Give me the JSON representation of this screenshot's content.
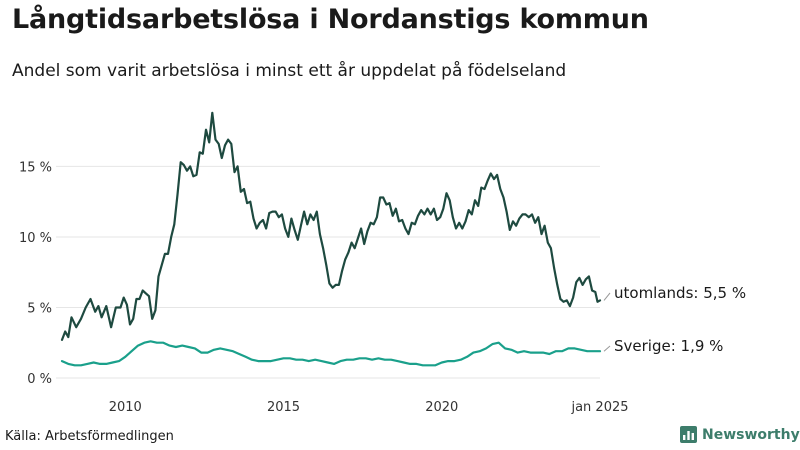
{
  "title": "Långtidsarbetslösa i Nordanstigs kommun",
  "subtitle": "Andel som varit arbetslösa i minst ett år uppdelat på födelseland",
  "source": "Källa: Arbetsförmedlingen",
  "brand": {
    "name": "Newsworthy",
    "icon": "bar-chart-icon",
    "color": "#3d7d6b"
  },
  "colors": {
    "series_foreign": "#1e4a40",
    "series_sweden": "#1aa08b",
    "grid": "#e6e6e6"
  },
  "chart_data": {
    "type": "line",
    "title": "Långtidsarbetslösa i Nordanstigs kommun",
    "subtitle": "Andel som varit arbetslösa i minst ett år uppdelat på födelseland",
    "xlabel": "",
    "ylabel": "",
    "xlim": [
      2008.0,
      2025.0
    ],
    "ylim": [
      0,
      19
    ],
    "grid": true,
    "x_ticks": [
      {
        "value": 2010,
        "label": "2010"
      },
      {
        "value": 2015,
        "label": "2015"
      },
      {
        "value": 2020,
        "label": "2020"
      },
      {
        "value": 2025,
        "label": "jan 2025"
      }
    ],
    "y_ticks": [
      {
        "value": 0,
        "label": "0 %"
      },
      {
        "value": 5,
        "label": "5 %"
      },
      {
        "value": 10,
        "label": "10 %"
      },
      {
        "value": 15,
        "label": "15 %"
      }
    ],
    "series": [
      {
        "name": "utomlands",
        "end_label": "utomlands: 5,5 %",
        "points": [
          [
            2008.0,
            2.7
          ],
          [
            2008.1,
            3.3
          ],
          [
            2008.2,
            2.9
          ],
          [
            2008.3,
            4.3
          ],
          [
            2008.45,
            3.6
          ],
          [
            2008.6,
            4.2
          ],
          [
            2008.75,
            5.0
          ],
          [
            2008.9,
            5.6
          ],
          [
            2009.05,
            4.7
          ],
          [
            2009.15,
            5.1
          ],
          [
            2009.25,
            4.3
          ],
          [
            2009.4,
            5.1
          ],
          [
            2009.55,
            3.6
          ],
          [
            2009.7,
            5.0
          ],
          [
            2009.85,
            5.0
          ],
          [
            2009.95,
            5.7
          ],
          [
            2010.05,
            5.2
          ],
          [
            2010.15,
            3.8
          ],
          [
            2010.25,
            4.2
          ],
          [
            2010.35,
            5.6
          ],
          [
            2010.45,
            5.6
          ],
          [
            2010.55,
            6.2
          ],
          [
            2010.65,
            6.0
          ],
          [
            2010.75,
            5.8
          ],
          [
            2010.85,
            4.2
          ],
          [
            2010.95,
            4.8
          ],
          [
            2011.05,
            7.2
          ],
          [
            2011.15,
            8.0
          ],
          [
            2011.25,
            8.8
          ],
          [
            2011.35,
            8.8
          ],
          [
            2011.45,
            10.0
          ],
          [
            2011.55,
            10.9
          ],
          [
            2011.65,
            13.0
          ],
          [
            2011.75,
            15.3
          ],
          [
            2011.85,
            15.1
          ],
          [
            2011.95,
            14.7
          ],
          [
            2012.05,
            15.0
          ],
          [
            2012.15,
            14.3
          ],
          [
            2012.25,
            14.4
          ],
          [
            2012.35,
            16.0
          ],
          [
            2012.45,
            15.9
          ],
          [
            2012.55,
            17.6
          ],
          [
            2012.65,
            16.7
          ],
          [
            2012.75,
            18.8
          ],
          [
            2012.85,
            16.9
          ],
          [
            2012.95,
            16.6
          ],
          [
            2013.05,
            15.6
          ],
          [
            2013.15,
            16.5
          ],
          [
            2013.25,
            16.9
          ],
          [
            2013.35,
            16.6
          ],
          [
            2013.45,
            14.6
          ],
          [
            2013.55,
            15.0
          ],
          [
            2013.65,
            13.2
          ],
          [
            2013.75,
            13.4
          ],
          [
            2013.85,
            12.4
          ],
          [
            2013.95,
            12.5
          ],
          [
            2014.05,
            11.3
          ],
          [
            2014.15,
            10.6
          ],
          [
            2014.25,
            11.0
          ],
          [
            2014.35,
            11.2
          ],
          [
            2014.45,
            10.6
          ],
          [
            2014.55,
            11.7
          ],
          [
            2014.65,
            11.8
          ],
          [
            2014.75,
            11.8
          ],
          [
            2014.85,
            11.4
          ],
          [
            2014.95,
            11.6
          ],
          [
            2015.05,
            10.6
          ],
          [
            2015.15,
            10.0
          ],
          [
            2015.25,
            11.3
          ],
          [
            2015.35,
            10.5
          ],
          [
            2015.45,
            9.8
          ],
          [
            2015.55,
            10.8
          ],
          [
            2015.65,
            11.8
          ],
          [
            2015.75,
            10.9
          ],
          [
            2015.85,
            11.6
          ],
          [
            2015.95,
            11.2
          ],
          [
            2016.05,
            11.8
          ],
          [
            2016.15,
            10.2
          ],
          [
            2016.25,
            9.2
          ],
          [
            2016.35,
            8.0
          ],
          [
            2016.45,
            6.7
          ],
          [
            2016.55,
            6.4
          ],
          [
            2016.65,
            6.6
          ],
          [
            2016.75,
            6.6
          ],
          [
            2016.85,
            7.6
          ],
          [
            2016.95,
            8.4
          ],
          [
            2017.05,
            8.9
          ],
          [
            2017.15,
            9.6
          ],
          [
            2017.25,
            9.2
          ],
          [
            2017.35,
            9.9
          ],
          [
            2017.45,
            10.6
          ],
          [
            2017.55,
            9.5
          ],
          [
            2017.65,
            10.4
          ],
          [
            2017.75,
            11.0
          ],
          [
            2017.85,
            10.9
          ],
          [
            2017.95,
            11.4
          ],
          [
            2018.05,
            12.8
          ],
          [
            2018.15,
            12.8
          ],
          [
            2018.25,
            12.3
          ],
          [
            2018.35,
            12.4
          ],
          [
            2018.45,
            11.5
          ],
          [
            2018.55,
            12.0
          ],
          [
            2018.65,
            11.1
          ],
          [
            2018.75,
            11.2
          ],
          [
            2018.85,
            10.6
          ],
          [
            2018.95,
            10.2
          ],
          [
            2019.05,
            11.0
          ],
          [
            2019.15,
            10.9
          ],
          [
            2019.25,
            11.5
          ],
          [
            2019.35,
            11.9
          ],
          [
            2019.45,
            11.6
          ],
          [
            2019.55,
            12.0
          ],
          [
            2019.65,
            11.6
          ],
          [
            2019.75,
            12.0
          ],
          [
            2019.85,
            11.2
          ],
          [
            2019.95,
            11.4
          ],
          [
            2020.05,
            12.0
          ],
          [
            2020.15,
            13.1
          ],
          [
            2020.25,
            12.6
          ],
          [
            2020.35,
            11.4
          ],
          [
            2020.45,
            10.6
          ],
          [
            2020.55,
            11.0
          ],
          [
            2020.65,
            10.6
          ],
          [
            2020.75,
            11.1
          ],
          [
            2020.85,
            11.9
          ],
          [
            2020.95,
            11.6
          ],
          [
            2021.05,
            12.6
          ],
          [
            2021.15,
            12.2
          ],
          [
            2021.25,
            13.5
          ],
          [
            2021.35,
            13.4
          ],
          [
            2021.45,
            14.0
          ],
          [
            2021.55,
            14.5
          ],
          [
            2021.65,
            14.1
          ],
          [
            2021.75,
            14.4
          ],
          [
            2021.85,
            13.4
          ],
          [
            2021.95,
            12.8
          ],
          [
            2022.05,
            11.8
          ],
          [
            2022.15,
            10.5
          ],
          [
            2022.25,
            11.1
          ],
          [
            2022.35,
            10.8
          ],
          [
            2022.45,
            11.3
          ],
          [
            2022.55,
            11.6
          ],
          [
            2022.65,
            11.6
          ],
          [
            2022.75,
            11.4
          ],
          [
            2022.85,
            11.6
          ],
          [
            2022.95,
            11.0
          ],
          [
            2023.05,
            11.4
          ],
          [
            2023.15,
            10.2
          ],
          [
            2023.25,
            10.8
          ],
          [
            2023.35,
            9.6
          ],
          [
            2023.45,
            9.2
          ],
          [
            2023.55,
            7.8
          ],
          [
            2023.65,
            6.6
          ],
          [
            2023.75,
            5.6
          ],
          [
            2023.85,
            5.4
          ],
          [
            2023.95,
            5.5
          ],
          [
            2024.05,
            5.1
          ],
          [
            2024.15,
            5.7
          ],
          [
            2024.25,
            6.8
          ],
          [
            2024.35,
            7.1
          ],
          [
            2024.45,
            6.6
          ],
          [
            2024.55,
            7.0
          ],
          [
            2024.65,
            7.2
          ],
          [
            2024.75,
            6.2
          ],
          [
            2024.85,
            6.1
          ],
          [
            2024.92,
            5.4
          ],
          [
            2025.0,
            5.5
          ]
        ]
      },
      {
        "name": "Sverige",
        "end_label": "Sverige: 1,9 %",
        "points": [
          [
            2008.0,
            1.2
          ],
          [
            2008.2,
            1.0
          ],
          [
            2008.4,
            0.9
          ],
          [
            2008.6,
            0.9
          ],
          [
            2008.8,
            1.0
          ],
          [
            2009.0,
            1.1
          ],
          [
            2009.2,
            1.0
          ],
          [
            2009.4,
            1.0
          ],
          [
            2009.6,
            1.1
          ],
          [
            2009.8,
            1.2
          ],
          [
            2010.0,
            1.5
          ],
          [
            2010.2,
            1.9
          ],
          [
            2010.4,
            2.3
          ],
          [
            2010.6,
            2.5
          ],
          [
            2010.8,
            2.6
          ],
          [
            2011.0,
            2.5
          ],
          [
            2011.2,
            2.5
          ],
          [
            2011.4,
            2.3
          ],
          [
            2011.6,
            2.2
          ],
          [
            2011.8,
            2.3
          ],
          [
            2012.0,
            2.2
          ],
          [
            2012.2,
            2.1
          ],
          [
            2012.4,
            1.8
          ],
          [
            2012.6,
            1.8
          ],
          [
            2012.8,
            2.0
          ],
          [
            2013.0,
            2.1
          ],
          [
            2013.2,
            2.0
          ],
          [
            2013.4,
            1.9
          ],
          [
            2013.6,
            1.7
          ],
          [
            2013.8,
            1.5
          ],
          [
            2014.0,
            1.3
          ],
          [
            2014.2,
            1.2
          ],
          [
            2014.4,
            1.2
          ],
          [
            2014.6,
            1.2
          ],
          [
            2014.8,
            1.3
          ],
          [
            2015.0,
            1.4
          ],
          [
            2015.2,
            1.4
          ],
          [
            2015.4,
            1.3
          ],
          [
            2015.6,
            1.3
          ],
          [
            2015.8,
            1.2
          ],
          [
            2016.0,
            1.3
          ],
          [
            2016.2,
            1.2
          ],
          [
            2016.4,
            1.1
          ],
          [
            2016.6,
            1.0
          ],
          [
            2016.8,
            1.2
          ],
          [
            2017.0,
            1.3
          ],
          [
            2017.2,
            1.3
          ],
          [
            2017.4,
            1.4
          ],
          [
            2017.6,
            1.4
          ],
          [
            2017.8,
            1.3
          ],
          [
            2018.0,
            1.4
          ],
          [
            2018.2,
            1.3
          ],
          [
            2018.4,
            1.3
          ],
          [
            2018.6,
            1.2
          ],
          [
            2018.8,
            1.1
          ],
          [
            2019.0,
            1.0
          ],
          [
            2019.2,
            1.0
          ],
          [
            2019.4,
            0.9
          ],
          [
            2019.6,
            0.9
          ],
          [
            2019.8,
            0.9
          ],
          [
            2020.0,
            1.1
          ],
          [
            2020.2,
            1.2
          ],
          [
            2020.4,
            1.2
          ],
          [
            2020.6,
            1.3
          ],
          [
            2020.8,
            1.5
          ],
          [
            2021.0,
            1.8
          ],
          [
            2021.2,
            1.9
          ],
          [
            2021.4,
            2.1
          ],
          [
            2021.6,
            2.4
          ],
          [
            2021.8,
            2.5
          ],
          [
            2022.0,
            2.1
          ],
          [
            2022.2,
            2.0
          ],
          [
            2022.4,
            1.8
          ],
          [
            2022.6,
            1.9
          ],
          [
            2022.8,
            1.8
          ],
          [
            2023.0,
            1.8
          ],
          [
            2023.2,
            1.8
          ],
          [
            2023.4,
            1.7
          ],
          [
            2023.6,
            1.9
          ],
          [
            2023.8,
            1.9
          ],
          [
            2024.0,
            2.1
          ],
          [
            2024.2,
            2.1
          ],
          [
            2024.4,
            2.0
          ],
          [
            2024.6,
            1.9
          ],
          [
            2024.8,
            1.9
          ],
          [
            2025.0,
            1.9
          ]
        ]
      }
    ]
  }
}
